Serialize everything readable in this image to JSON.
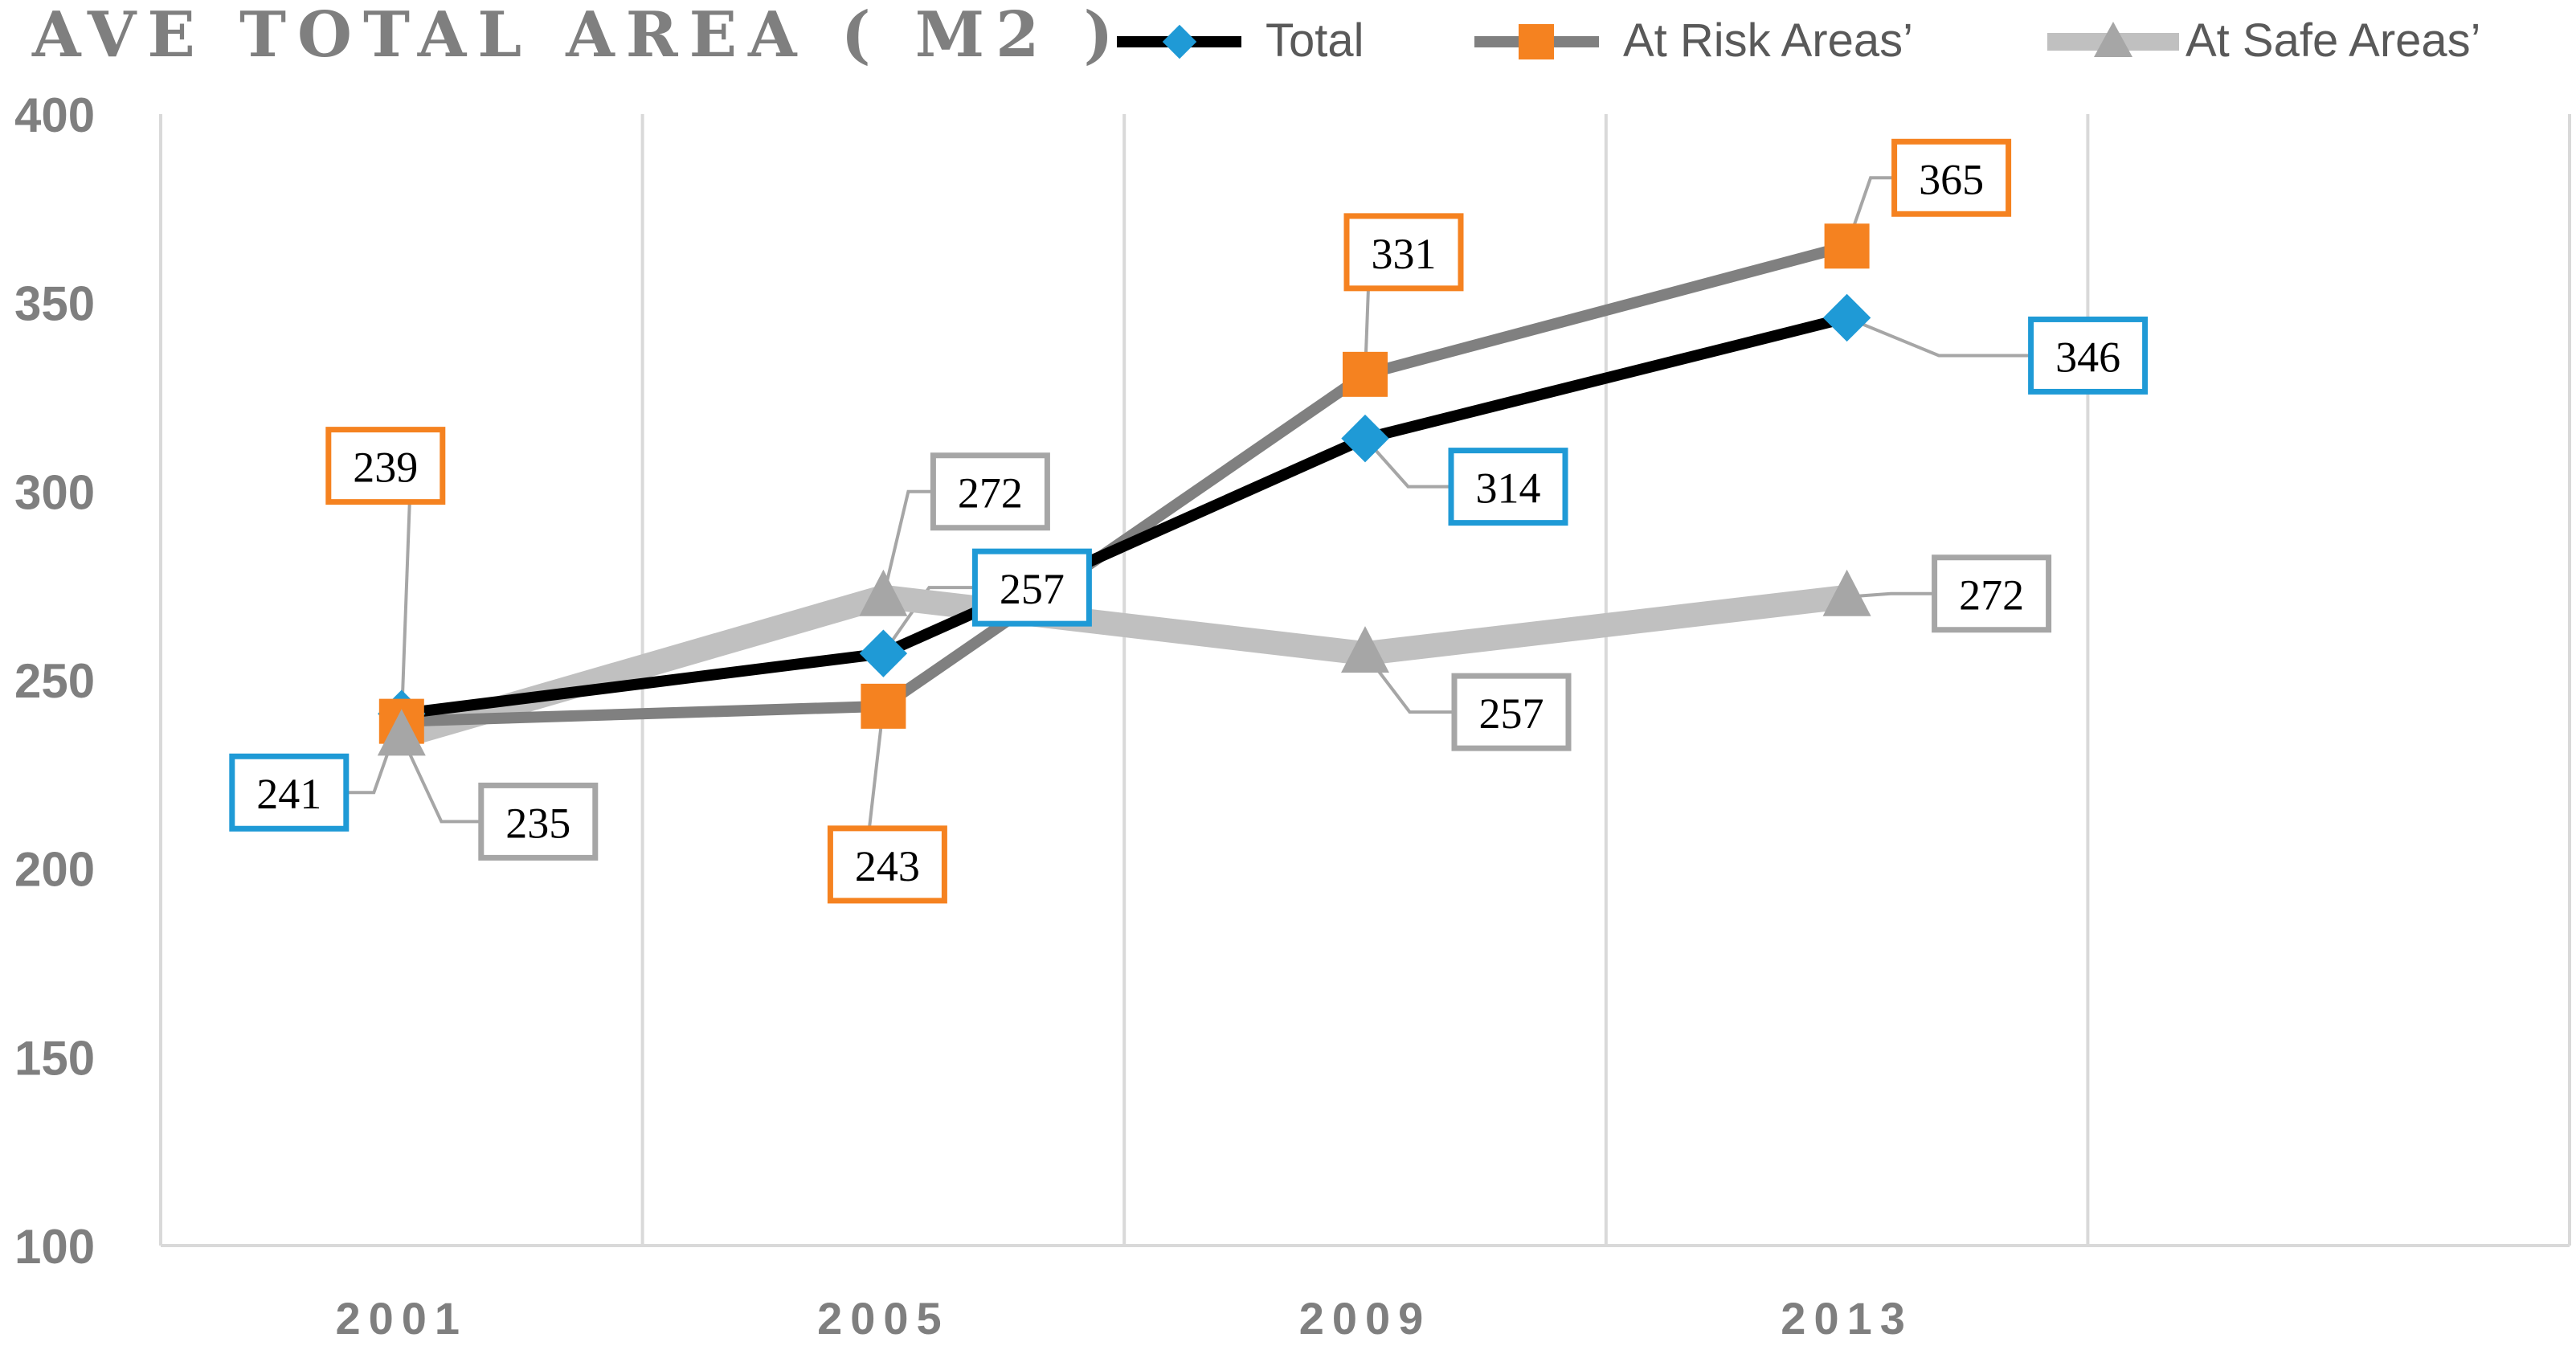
{
  "chart_data": {
    "type": "line",
    "title": "AVE TOTAL AREA ( M2 )",
    "categories": [
      "2001",
      "2005",
      "2009",
      "2013"
    ],
    "ylim": [
      100,
      400
    ],
    "yticks": [
      100,
      150,
      200,
      250,
      300,
      350,
      400
    ],
    "grid": "vertical",
    "legend_position": "top-right",
    "series": [
      {
        "name": "Total",
        "values": [
          241,
          257,
          314,
          346
        ],
        "color": "#000000",
        "marker": "diamond",
        "marker_color": "#1f9ad6"
      },
      {
        "name": "At Risk Areas’",
        "values": [
          239,
          243,
          331,
          365
        ],
        "color": "#808080",
        "marker": "square",
        "marker_color": "#f58220"
      },
      {
        "name": "At Safe Areas’",
        "values": [
          235,
          272,
          257,
          272
        ],
        "color": "#c0c0c0",
        "marker": "triangle",
        "marker_color": "#a6a6a6"
      }
    ]
  }
}
